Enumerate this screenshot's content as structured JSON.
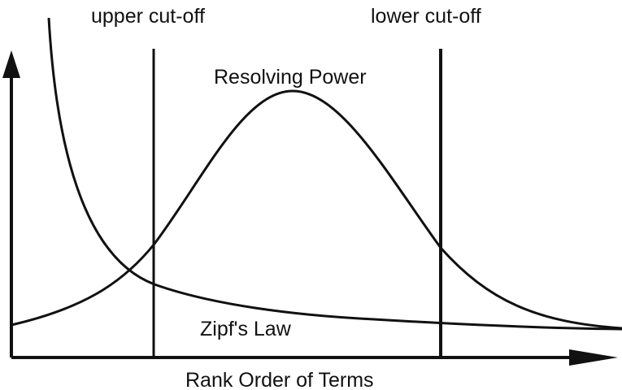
{
  "labels": {
    "upper_cutoff": "upper cut-off",
    "lower_cutoff": "lower cut-off",
    "resolving_power": "Resolving Power",
    "zipfs_law": "Zipf's Law",
    "x_axis": "Rank Order of Terms"
  },
  "colors": {
    "ink": "#111111",
    "background": "#ffffff"
  }
}
